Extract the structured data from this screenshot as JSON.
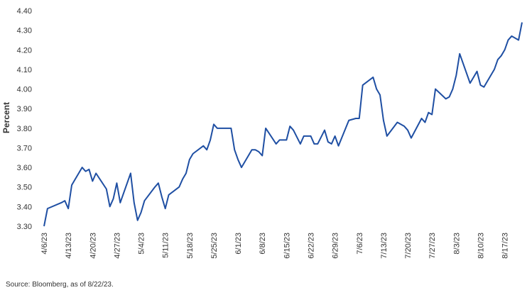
{
  "chart_data": {
    "type": "line",
    "ylabel": "Percent",
    "ylim": [
      3.3,
      4.4
    ],
    "yticks": [
      "3.30",
      "3.40",
      "3.50",
      "3.60",
      "3.70",
      "3.80",
      "3.90",
      "4.00",
      "4.10",
      "4.20",
      "4.30",
      "4.40"
    ],
    "xticks": [
      "4/6/23",
      "4/13/23",
      "4/20/23",
      "4/27/23",
      "5/4/23",
      "5/11/23",
      "5/18/23",
      "5/25/23",
      "6/1/23",
      "6/8/23",
      "6/15/23",
      "6/22/23",
      "6/29/23",
      "7/6/23",
      "7/13/23",
      "7/20/23",
      "7/27/23",
      "8/3/23",
      "8/10/23",
      "8/17/23"
    ],
    "x_start": "4/6/23",
    "x_end": "8/22/23",
    "grid": false,
    "series": [
      {
        "color": "#1f4fa3",
        "points": [
          [
            "4/6/23",
            3.3
          ],
          [
            "4/7/23",
            3.39
          ],
          [
            "4/11/23",
            3.42
          ],
          [
            "4/12/23",
            3.43
          ],
          [
            "4/13/23",
            3.39
          ],
          [
            "4/14/23",
            3.51
          ],
          [
            "4/17/23",
            3.6
          ],
          [
            "4/18/23",
            3.58
          ],
          [
            "4/19/23",
            3.59
          ],
          [
            "4/20/23",
            3.53
          ],
          [
            "4/21/23",
            3.57
          ],
          [
            "4/24/23",
            3.49
          ],
          [
            "4/25/23",
            3.4
          ],
          [
            "4/26/23",
            3.44
          ],
          [
            "4/27/23",
            3.52
          ],
          [
            "4/28/23",
            3.42
          ],
          [
            "5/1/23",
            3.57
          ],
          [
            "5/2/23",
            3.42
          ],
          [
            "5/3/23",
            3.33
          ],
          [
            "5/4/23",
            3.37
          ],
          [
            "5/5/23",
            3.43
          ],
          [
            "5/8/23",
            3.5
          ],
          [
            "5/9/23",
            3.52
          ],
          [
            "5/10/23",
            3.45
          ],
          [
            "5/11/23",
            3.39
          ],
          [
            "5/12/23",
            3.46
          ],
          [
            "5/15/23",
            3.5
          ],
          [
            "5/16/23",
            3.54
          ],
          [
            "5/17/23",
            3.57
          ],
          [
            "5/18/23",
            3.64
          ],
          [
            "5/19/23",
            3.67
          ],
          [
            "5/22/23",
            3.71
          ],
          [
            "5/23/23",
            3.69
          ],
          [
            "5/24/23",
            3.74
          ],
          [
            "5/25/23",
            3.82
          ],
          [
            "5/26/23",
            3.8
          ],
          [
            "5/30/23",
            3.8
          ],
          [
            "5/31/23",
            3.69
          ],
          [
            "6/1/23",
            3.64
          ],
          [
            "6/2/23",
            3.6
          ],
          [
            "6/5/23",
            3.69
          ],
          [
            "6/6/23",
            3.69
          ],
          [
            "6/7/23",
            3.68
          ],
          [
            "6/8/23",
            3.66
          ],
          [
            "6/9/23",
            3.8
          ],
          [
            "6/12/23",
            3.72
          ],
          [
            "6/13/23",
            3.74
          ],
          [
            "6/14/23",
            3.74
          ],
          [
            "6/15/23",
            3.74
          ],
          [
            "6/16/23",
            3.81
          ],
          [
            "6/17/23",
            3.79
          ],
          [
            "6/19/23",
            3.72
          ],
          [
            "6/20/23",
            3.76
          ],
          [
            "6/21/23",
            3.76
          ],
          [
            "6/22/23",
            3.76
          ],
          [
            "6/23/23",
            3.72
          ],
          [
            "6/24/23",
            3.72
          ],
          [
            "6/26/23",
            3.79
          ],
          [
            "6/27/23",
            3.73
          ],
          [
            "6/28/23",
            3.72
          ],
          [
            "6/29/23",
            3.76
          ],
          [
            "6/30/23",
            3.71
          ],
          [
            "7/3/23",
            3.84
          ],
          [
            "7/5/23",
            3.85
          ],
          [
            "7/6/23",
            3.85
          ],
          [
            "7/7/23",
            4.02
          ],
          [
            "7/10/23",
            4.06
          ],
          [
            "7/11/23",
            4.0
          ],
          [
            "7/12/23",
            3.97
          ],
          [
            "7/13/23",
            3.84
          ],
          [
            "7/14/23",
            3.76
          ],
          [
            "7/17/23",
            3.83
          ],
          [
            "7/18/23",
            3.82
          ],
          [
            "7/19/23",
            3.81
          ],
          [
            "7/20/23",
            3.79
          ],
          [
            "7/21/23",
            3.75
          ],
          [
            "7/24/23",
            3.85
          ],
          [
            "7/25/23",
            3.83
          ],
          [
            "7/26/23",
            3.88
          ],
          [
            "7/27/23",
            3.87
          ],
          [
            "7/28/23",
            4.0
          ],
          [
            "7/31/23",
            3.95
          ],
          [
            "8/1/23",
            3.96
          ],
          [
            "8/2/23",
            4.0
          ],
          [
            "8/3/23",
            4.07
          ],
          [
            "8/4/23",
            4.18
          ],
          [
            "8/7/23",
            4.03
          ],
          [
            "8/8/23",
            4.06
          ],
          [
            "8/9/23",
            4.09
          ],
          [
            "8/10/23",
            4.02
          ],
          [
            "8/11/23",
            4.01
          ],
          [
            "8/14/23",
            4.1
          ],
          [
            "8/15/23",
            4.15
          ],
          [
            "8/16/23",
            4.17
          ],
          [
            "8/17/23",
            4.2
          ],
          [
            "8/18/23",
            4.25
          ],
          [
            "8/19/23",
            4.27
          ],
          [
            "8/21/23",
            4.25
          ],
          [
            "8/22/23",
            4.34
          ]
        ]
      }
    ]
  },
  "source_note": "Source: Bloomberg, as of 8/22/23."
}
